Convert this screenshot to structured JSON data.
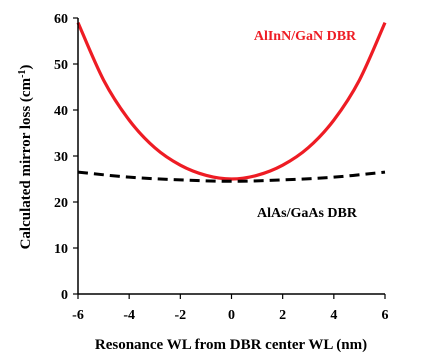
{
  "chart_data": {
    "type": "line",
    "xlabel": "Resonance WL from DBR center WL (nm)",
    "ylabel": "Calculated mirror loss (cm",
    "ylabel_sup": "-1",
    "ylabel_end": ")",
    "xlim": [
      -6,
      6
    ],
    "ylim": [
      0,
      60
    ],
    "xticks": [
      -6,
      -4,
      -2,
      0,
      2,
      4,
      6
    ],
    "yticks": [
      0,
      10,
      20,
      30,
      40,
      50,
      60
    ],
    "grid": false,
    "series": [
      {
        "name": "AlInN/GaN DBR",
        "style": "solid",
        "color": "#ee1c24",
        "x": [
          -6,
          -5,
          -4,
          -3,
          -2,
          -1,
          0,
          1,
          2,
          3,
          4,
          5,
          6
        ],
        "y": [
          59,
          46.5,
          37.8,
          31.8,
          28.0,
          25.8,
          25.0,
          25.8,
          28.0,
          31.8,
          37.8,
          46.5,
          59
        ]
      },
      {
        "name": "AlAs/GaAs DBR",
        "style": "dashed",
        "color": "#000000",
        "x": [
          -6,
          -4,
          -2,
          0,
          2,
          4,
          6
        ],
        "y": [
          26.5,
          25.4,
          24.8,
          24.5,
          24.8,
          25.4,
          26.5
        ]
      }
    ]
  }
}
